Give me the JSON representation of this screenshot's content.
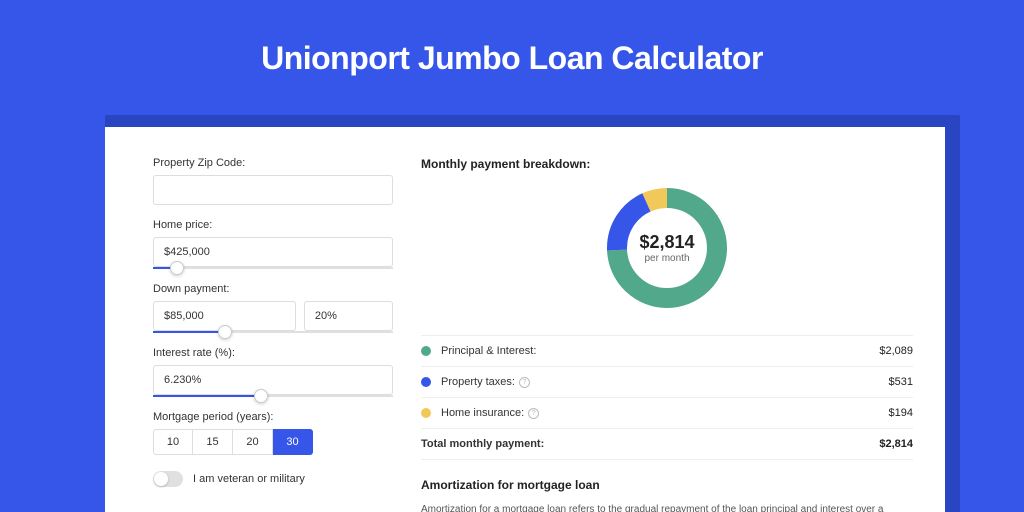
{
  "page": {
    "title": "Unionport Jumbo Loan Calculator",
    "background_color": "#3556e8",
    "shadow_color": "#2a45c2",
    "panel_color": "#ffffff"
  },
  "form": {
    "zip": {
      "label": "Property Zip Code:",
      "value": ""
    },
    "home_price": {
      "label": "Home price:",
      "value": "$425,000",
      "slider_pct": 10
    },
    "down_payment": {
      "label": "Down payment:",
      "amount": "$85,000",
      "percent": "20%",
      "slider_pct": 30
    },
    "interest": {
      "label": "Interest rate (%):",
      "value": "6.230%",
      "slider_pct": 45
    },
    "period": {
      "label": "Mortgage period (years):",
      "options": [
        "10",
        "15",
        "20",
        "30"
      ],
      "selected": "30"
    },
    "veteran": {
      "label": "I am veteran or military",
      "checked": false
    }
  },
  "breakdown": {
    "title": "Monthly payment breakdown:",
    "donut": {
      "value": "$2,814",
      "sub": "per month",
      "slices": [
        {
          "color": "#52a88a",
          "pct": 74.2
        },
        {
          "color": "#3556e8",
          "pct": 18.9
        },
        {
          "color": "#f0c95a",
          "pct": 6.9
        }
      ],
      "stroke_width": 20
    },
    "items": [
      {
        "label": "Principal & Interest:",
        "amount": "$2,089",
        "color": "#52a88a",
        "info": false
      },
      {
        "label": "Property taxes:",
        "amount": "$531",
        "color": "#3556e8",
        "info": true
      },
      {
        "label": "Home insurance:",
        "amount": "$194",
        "color": "#f0c95a",
        "info": true
      }
    ],
    "total": {
      "label": "Total monthly payment:",
      "amount": "$2,814"
    }
  },
  "amortization": {
    "title": "Amortization for mortgage loan",
    "text": "Amortization for a mortgage loan refers to the gradual repayment of the loan principal and interest over a specified"
  }
}
